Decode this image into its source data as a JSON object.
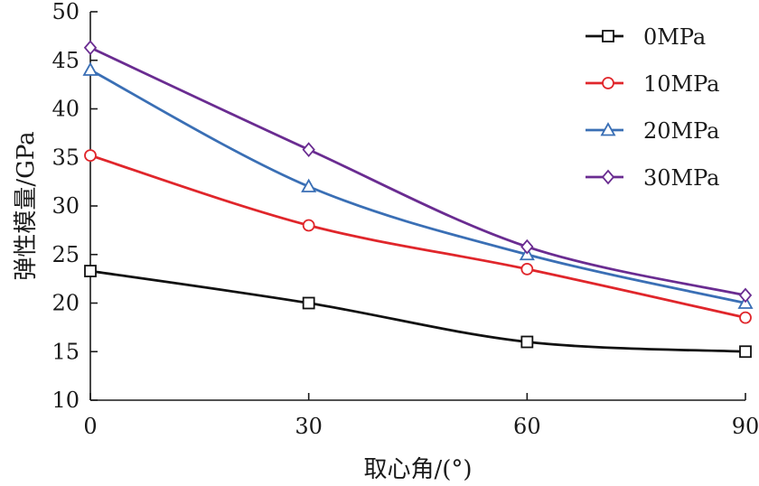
{
  "chart_data": {
    "type": "line",
    "xlabel": "取心角/(°)",
    "ylabel": "弹性模量/GPa",
    "x": [
      0,
      30,
      60,
      90
    ],
    "xticks": [
      0,
      30,
      60,
      90
    ],
    "xlim": [
      0,
      90
    ],
    "ylim": [
      10,
      50
    ],
    "yticks": [
      10,
      15,
      20,
      25,
      30,
      35,
      40,
      45,
      50
    ],
    "grid": false,
    "legend_position": "top-right",
    "smooth": true,
    "series": [
      {
        "name": "0MPa",
        "values": [
          23.3,
          20.0,
          16.0,
          15.0
        ],
        "color": "#111111",
        "marker": "square"
      },
      {
        "name": "10MPa",
        "values": [
          35.2,
          28.0,
          23.5,
          18.5
        ],
        "color": "#e0262b",
        "marker": "circle"
      },
      {
        "name": "20MPa",
        "values": [
          44.0,
          32.0,
          25.0,
          20.0
        ],
        "color": "#3a6fb5",
        "marker": "triangle"
      },
      {
        "name": "30MPa",
        "values": [
          46.3,
          35.8,
          25.8,
          20.8
        ],
        "color": "#6a2c91",
        "marker": "diamond"
      }
    ]
  }
}
